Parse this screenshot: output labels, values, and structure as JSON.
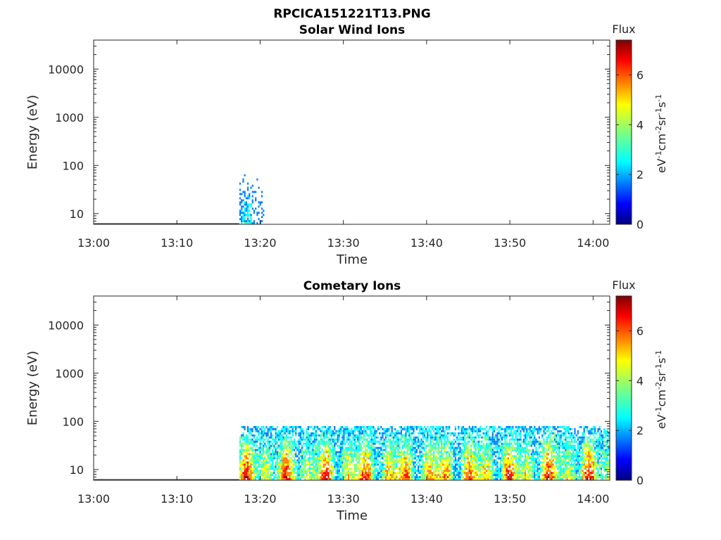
{
  "figure_title": "RPCICA151221T13.PNG",
  "colorscale": [
    "#00007f",
    "#0000ff",
    "#007fff",
    "#00ffff",
    "#7fff7f",
    "#ffff00",
    "#ff7f00",
    "#ff0000",
    "#7f0000"
  ],
  "chart_data": [
    {
      "type": "heatmap",
      "title": "Solar Wind Ions",
      "xlabel": "Time",
      "ylabel": "Energy (eV)",
      "x_ticks": [
        "13:00",
        "13:10",
        "13:20",
        "13:30",
        "13:40",
        "13:50",
        "14:00"
      ],
      "y_ticks": [
        "10",
        "100",
        "1000",
        "10000"
      ],
      "y_scale": "log",
      "ylim": [
        6,
        40000
      ],
      "xlim": [
        "13:00",
        "14:02"
      ],
      "colorbar": {
        "label": "Flux",
        "unit": "eV-1cm-2sr-1s-1",
        "ticks": [
          "0",
          "2",
          "4",
          "6"
        ],
        "range": [
          0,
          7.4
        ]
      },
      "signal": [
        {
          "t_start": "13:17:30",
          "t_end": "13:20:30",
          "e_min": 6,
          "e_max": 80,
          "flux_level": 2.8
        }
      ]
    },
    {
      "type": "heatmap",
      "title": "Cometary Ions",
      "xlabel": "Time",
      "ylabel": "Energy (eV)",
      "x_ticks": [
        "13:00",
        "13:10",
        "13:20",
        "13:30",
        "13:40",
        "13:50",
        "14:00"
      ],
      "y_ticks": [
        "10",
        "100",
        "1000",
        "10000"
      ],
      "y_scale": "log",
      "ylim": [
        6,
        40000
      ],
      "xlim": [
        "13:00",
        "14:02"
      ],
      "colorbar": {
        "label": "Flux",
        "unit": "eV-1cm-2sr-1s-1",
        "ticks": [
          "0",
          "2",
          "4",
          "6"
        ],
        "range": [
          0,
          7.4
        ]
      },
      "signal": [
        {
          "t_start": "13:17:30",
          "t_end": "14:02",
          "e_min": 6,
          "e_max": 80,
          "flux_level": 6.5
        }
      ]
    }
  ]
}
